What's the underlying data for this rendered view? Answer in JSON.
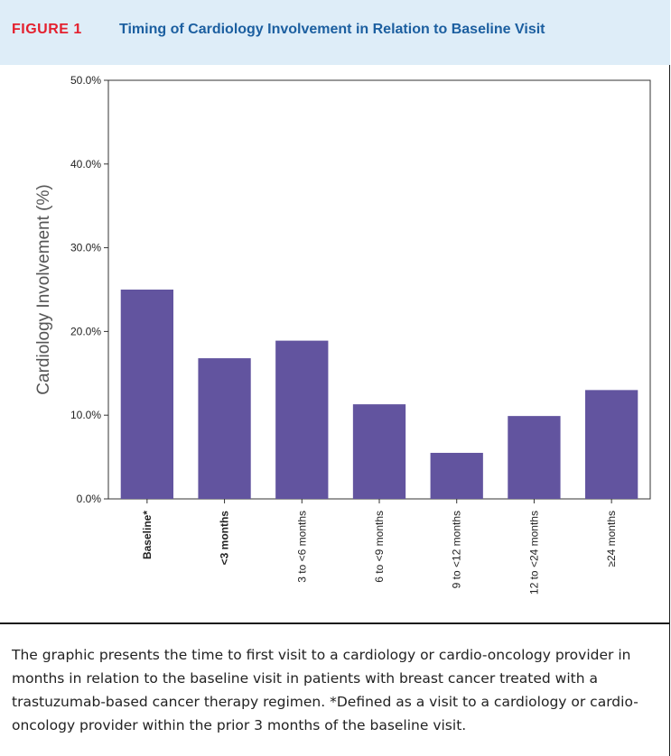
{
  "figure": {
    "label": "FIGURE 1",
    "title": "Timing of Cardiology Involvement in Relation to Baseline Visit"
  },
  "colors": {
    "bar": "#62549f",
    "header_bg": "#deedf8",
    "label_red": "#e4202e",
    "title_blue": "#1c5fa0"
  },
  "chart_data": {
    "type": "bar",
    "ylabel": "Cardiology Involvement (%)",
    "xlabel": "",
    "ylim": [
      0,
      50
    ],
    "yticks": [
      "0.0%",
      "10.0%",
      "20.0%",
      "30.0%",
      "40.0%",
      "50.0%"
    ],
    "categories": [
      "Baseline*",
      "<3 months",
      "3 to <6 months",
      "6 to <9 months",
      "9 to <12 months",
      "12 to <24 months",
      "≥24 months"
    ],
    "bold_categories": [
      "Baseline*",
      "<3 months"
    ],
    "values": [
      25.0,
      16.8,
      18.9,
      11.3,
      5.5,
      9.9,
      13.0
    ],
    "grid": false,
    "legend": "none"
  },
  "caption": "The graphic presents the time to first visit to a cardiology or cardio-oncology provider in months in relation to the baseline visit in patients with breast cancer treated with a trastuzumab-based cancer therapy regimen. *Defined as a visit to a cardiology or cardio-oncology provider within the prior 3 months of the baseline visit."
}
